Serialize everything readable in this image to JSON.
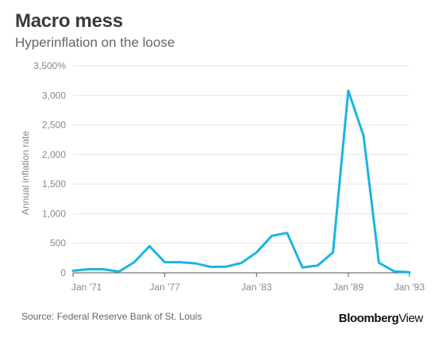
{
  "header": {
    "title": "Macro mess",
    "subtitle": "Hyperinflation on the loose"
  },
  "footer": {
    "source": "Source: Federal Reserve Bank of St. Louis",
    "brand_main": "Bloomberg",
    "brand_suffix": "View"
  },
  "colors": {
    "line": "#1cb4e0",
    "grid": "#e5e5e5",
    "axis_text": "#888888"
  },
  "chart_data": {
    "type": "line",
    "title": "Macro mess",
    "subtitle": "Hyperinflation on the loose",
    "xlabel": "",
    "ylabel": "Annual inflation rate",
    "x": [
      1971,
      1972,
      1973,
      1974,
      1975,
      1976,
      1977,
      1978,
      1979,
      1980,
      1981,
      1982,
      1983,
      1984,
      1985,
      1986,
      1987,
      1988,
      1989,
      1990,
      1991,
      1992,
      1993
    ],
    "series": [
      {
        "values": [
          35,
          60,
          60,
          20,
          180,
          450,
          180,
          180,
          160,
          100,
          105,
          165,
          345,
          625,
          675,
          90,
          125,
          345,
          3080,
          2315,
          170,
          25,
          10
        ]
      }
    ],
    "xlim": [
      1971,
      1993
    ],
    "ylim": [
      0,
      3500
    ],
    "x_ticks": [
      1971,
      1977,
      1983,
      1989,
      1993
    ],
    "x_tick_labels": [
      "Jan '71",
      "Jan '77",
      "Jan '83",
      "Jan '89",
      "Jan '93"
    ],
    "y_ticks": [
      0,
      500,
      1000,
      1500,
      2000,
      2500,
      3000,
      3500
    ],
    "y_tick_labels": [
      "0",
      "500",
      "1,000",
      "1,500",
      "2,000",
      "2,500",
      "3,000",
      "3,500%"
    ],
    "grid": true,
    "legend": "none"
  }
}
